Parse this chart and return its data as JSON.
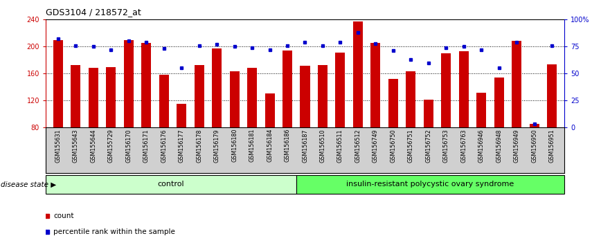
{
  "title": "GDS3104 / 218572_at",
  "samples": [
    "GSM155631",
    "GSM155643",
    "GSM155644",
    "GSM155729",
    "GSM156170",
    "GSM156171",
    "GSM156176",
    "GSM156177",
    "GSM156178",
    "GSM156179",
    "GSM156180",
    "GSM156181",
    "GSM156184",
    "GSM156186",
    "GSM156187",
    "GSM156510",
    "GSM156511",
    "GSM156512",
    "GSM156749",
    "GSM156750",
    "GSM156751",
    "GSM156752",
    "GSM156753",
    "GSM156763",
    "GSM156946",
    "GSM156948",
    "GSM156949",
    "GSM156950",
    "GSM156951"
  ],
  "counts": [
    210,
    173,
    168,
    169,
    209,
    205,
    158,
    115,
    173,
    197,
    163,
    168,
    130,
    194,
    172,
    173,
    191,
    237,
    205,
    152,
    163,
    121,
    190,
    193,
    131,
    154,
    208,
    85,
    174
  ],
  "percentiles": [
    82,
    76,
    75,
    72,
    80,
    79,
    73,
    55,
    76,
    77,
    75,
    74,
    72,
    76,
    79,
    76,
    79,
    88,
    78,
    71,
    63,
    60,
    74,
    75,
    72,
    55,
    79,
    3,
    76
  ],
  "control_count": 14,
  "group1_label": "control",
  "group2_label": "insulin-resistant polycystic ovary syndrome",
  "group1_color": "#ccffcc",
  "group2_color": "#66ff66",
  "bar_color": "#cc0000",
  "dot_color": "#0000cc",
  "ylim_left": [
    80,
    240
  ],
  "ylim_right": [
    0,
    100
  ],
  "yticks_left": [
    80,
    120,
    160,
    200,
    240
  ],
  "yticks_right": [
    0,
    25,
    50,
    75,
    100
  ],
  "ytick_right_labels": [
    "0",
    "25",
    "50",
    "75",
    "100%"
  ],
  "hlines": [
    120,
    160,
    200
  ],
  "tick_bg_color": "#d0d0d0",
  "plot_bg_color": "#ffffff",
  "disease_state_label": "disease state"
}
